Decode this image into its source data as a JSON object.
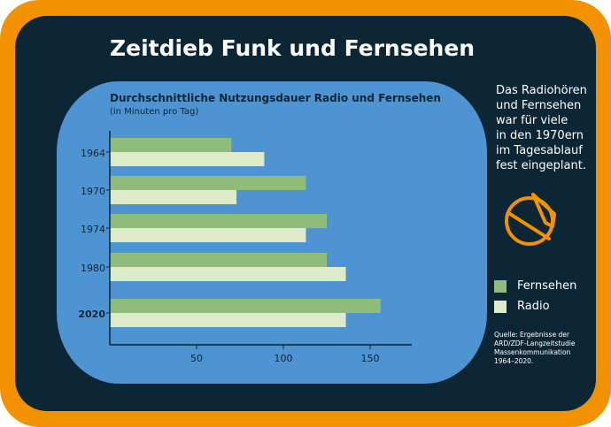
{
  "title": "Zeitdieb Funk und Fernsehen",
  "subtitle": "Durchschnittliche Nutzungsdauer Radio und Fernsehen",
  "unit": "(in Minuten pro Tag)",
  "side_text": [
    "Das Radiohören",
    "und Fernsehen",
    "war für viele",
    "in den 1970ern",
    "im Tagesablauf",
    "fest eingeplant."
  ],
  "legend": [
    {
      "label": "Fernsehen",
      "color": "#8fbc7b"
    },
    {
      "label": "Radio",
      "color": "#ddebc9"
    }
  ],
  "source": [
    "Quelle: Ergebnisse der",
    "ARD/ZDF-Langzeitstudie",
    "Massenkommunikation",
    "1964–2020."
  ],
  "icon": "tv-antenna-icon",
  "colors": {
    "frame": "#f39200",
    "panel": "#0c2635",
    "screen": "#4e93d2",
    "fernsehen": "#8fbc7b",
    "radio": "#ddebc9",
    "axis": "#0c2635"
  },
  "chart_data": {
    "type": "bar",
    "orientation": "horizontal",
    "categories": [
      "1964",
      "1970",
      "1974",
      "1980",
      "2020"
    ],
    "series": [
      {
        "name": "Fernsehen",
        "values": [
          70,
          113,
          125,
          125,
          156
        ]
      },
      {
        "name": "Radio",
        "values": [
          89,
          73,
          113,
          136,
          136
        ]
      }
    ],
    "xticks": [
      50,
      100,
      150
    ],
    "xlim": [
      0,
      175
    ],
    "bold_categories": [
      "2020"
    ],
    "xlabel": "",
    "ylabel": "",
    "grid": false
  }
}
